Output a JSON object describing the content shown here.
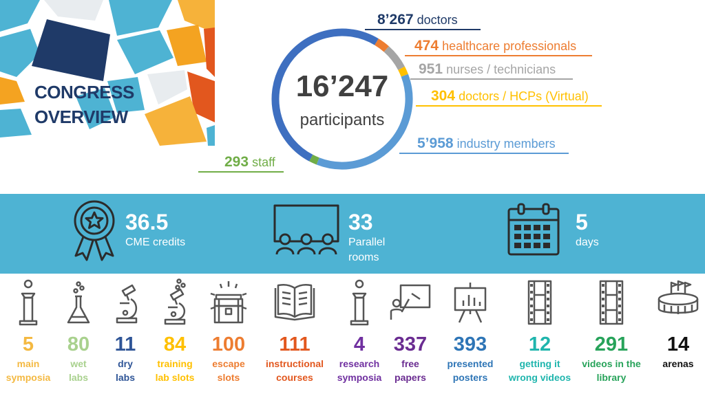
{
  "title": {
    "line1": "CONGRESS",
    "line2": "OVERVIEW"
  },
  "colors": {
    "title": "#1f3a68",
    "band": "#4eb3d3",
    "doctors": "#1f3a68",
    "healthcare": "#ed7d31",
    "nurses": "#a5a5a5",
    "virtual": "#ffc000",
    "industry": "#5b9bd5",
    "staff": "#70ad47"
  },
  "participants": {
    "total": "16’247",
    "label": "participants",
    "segments": [
      {
        "key": "doctors",
        "value": "8’267",
        "label": "doctors",
        "count": 8267,
        "color": "#3e6fc0"
      },
      {
        "key": "healthcare",
        "value": "474",
        "label": "healthcare professionals",
        "count": 474,
        "color": "#ed7d31"
      },
      {
        "key": "nurses",
        "value": "951",
        "label": "nurses / technicians",
        "count": 951,
        "color": "#a5a5a5"
      },
      {
        "key": "virtual",
        "value": "304",
        "label": "doctors / HCPs (Virtual)",
        "count": 304,
        "color": "#ffc000"
      },
      {
        "key": "industry",
        "value": "5’958",
        "label": "industry members",
        "count": 5958,
        "color": "#5b9bd5"
      },
      {
        "key": "staff",
        "value": "293",
        "label": "staff",
        "count": 293,
        "color": "#70ad47"
      }
    ]
  },
  "band_stats": [
    {
      "value": "36.5",
      "label": "CME credits",
      "icon": "award-ribbon-icon"
    },
    {
      "value": "33",
      "label_line1": "Parallel",
      "label_line2": "rooms",
      "icon": "audience-screen-icon"
    },
    {
      "value": "5",
      "label": "days",
      "icon": "calendar-icon"
    }
  ],
  "stats": [
    {
      "value": "5",
      "line1": "main",
      "line2": "symposia",
      "color": "#f4b942",
      "icon": "lectern-icon"
    },
    {
      "value": "80",
      "line1": "wet",
      "line2": "labs",
      "color": "#a9d18e",
      "icon": "flask-icon"
    },
    {
      "value": "11",
      "line1": "dry",
      "line2": "labs",
      "color": "#2f5597",
      "icon": "microscope-icon"
    },
    {
      "value": "84",
      "line1": "training",
      "line2": "lab slots",
      "color": "#ffc000",
      "icon": "microscope-bubbles-icon"
    },
    {
      "value": "100",
      "line1": "escape",
      "line2": "slots",
      "color": "#ed7d31",
      "icon": "treasure-chest-icon"
    },
    {
      "value": "111",
      "line1": "instructional",
      "line2": "courses",
      "color": "#e2571e",
      "icon": "open-book-icon"
    },
    {
      "value": "4",
      "line1": "research",
      "line2": "symposia",
      "color": "#7030a0",
      "icon": "lectern-icon"
    },
    {
      "value": "337",
      "line1": "free",
      "line2": "papers",
      "color": "#6a2c91",
      "icon": "whiteboard-presenter-icon"
    },
    {
      "value": "393",
      "line1": "presented",
      "line2": "posters",
      "color": "#2e75b6",
      "icon": "easel-chart-icon"
    },
    {
      "value": "12",
      "line1": "getting it",
      "line2": "wrong videos",
      "color": "#1fb5ad",
      "icon": "film-strip-icon"
    },
    {
      "value": "291",
      "line1": "videos in the",
      "line2": "library",
      "color": "#27a35a",
      "icon": "film-strip-icon"
    },
    {
      "value": "14",
      "line1": "arenas",
      "line2": "",
      "color": "#111111",
      "icon": "arena-icon"
    }
  ]
}
